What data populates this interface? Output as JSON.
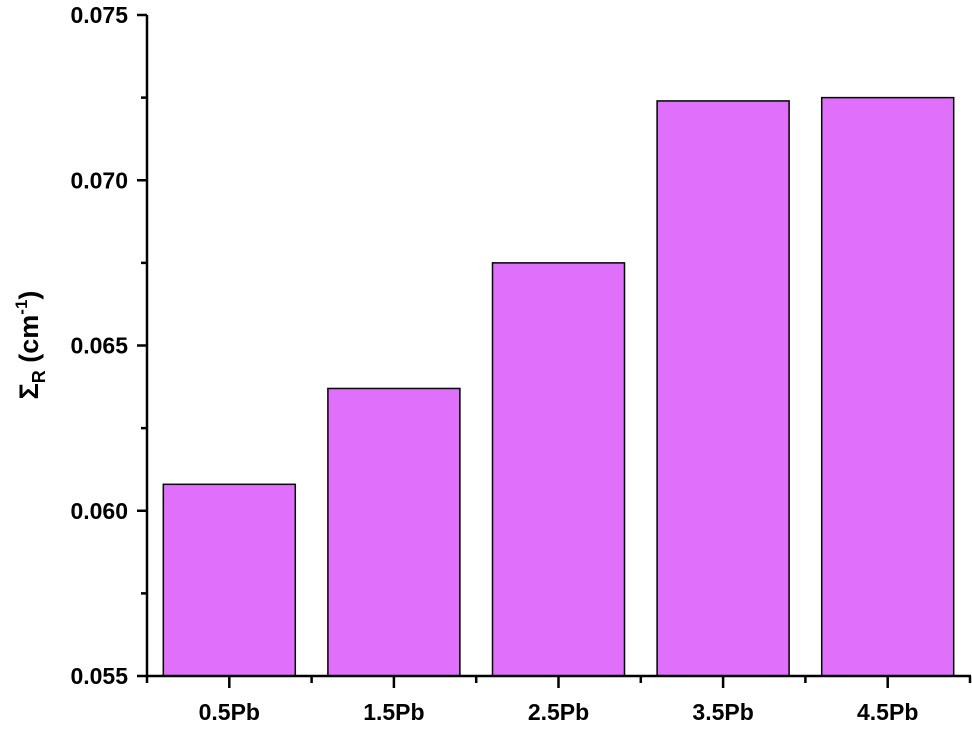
{
  "chart_data": {
    "type": "bar",
    "title": "",
    "xlabel": "",
    "ylabel": "ΣR (cm-1)",
    "ylabel_parts": {
      "symbol": "Σ",
      "subscript": "R",
      "unit_open": " (cm",
      "superscript": "-1",
      "unit_close": ")"
    },
    "categories": [
      "0.5Pb",
      "1.5Pb",
      "2.5Pb",
      "3.5Pb",
      "4.5Pb"
    ],
    "values": [
      0.0608,
      0.0637,
      0.0675,
      0.0724,
      0.0725
    ],
    "ylim": [
      0.055,
      0.075
    ],
    "yticks": [
      "0.055",
      "0.060",
      "0.065",
      "0.070",
      "0.075"
    ],
    "ytick_values": [
      0.055,
      0.06,
      0.065,
      0.07,
      0.075
    ],
    "grid": false,
    "legend": null,
    "bar_color": "#E070FC",
    "edge_color": "#000000"
  }
}
